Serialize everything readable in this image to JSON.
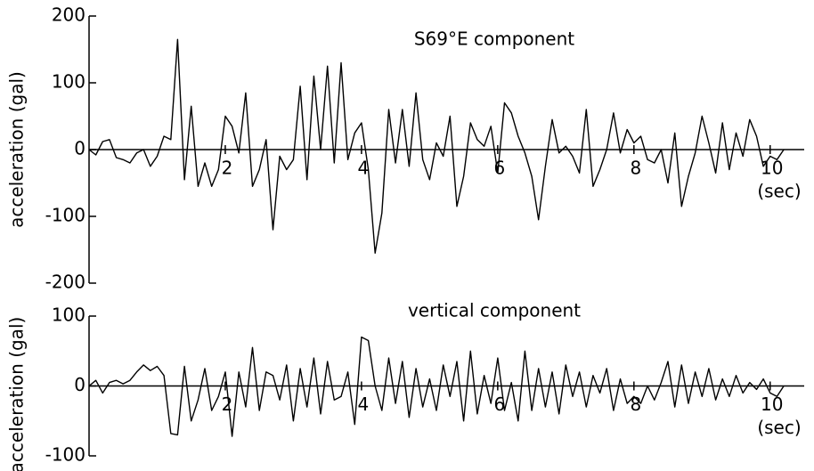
{
  "chart_data": [
    {
      "type": "line",
      "annotation": "S69°E component",
      "x_label": "(sec)",
      "y_label": "acceleration (gal)",
      "color": "#000000",
      "grid": false,
      "xlim": [
        0,
        10.5
      ],
      "xticks": [
        2,
        4,
        6,
        8,
        10
      ],
      "ylim": [
        -200,
        200
      ],
      "yticks": [
        200,
        100,
        0,
        -100,
        -200
      ],
      "x": [
        0,
        0.1,
        0.2,
        0.3,
        0.4,
        0.5,
        0.6,
        0.7,
        0.8,
        0.9,
        1,
        1.1,
        1.2,
        1.3,
        1.4,
        1.5,
        1.6,
        1.7,
        1.8,
        1.9,
        2,
        2.1,
        2.2,
        2.3,
        2.4,
        2.5,
        2.6,
        2.7,
        2.8,
        2.9,
        3,
        3.1,
        3.2,
        3.3,
        3.4,
        3.5,
        3.6,
        3.7,
        3.8,
        3.9,
        4,
        4.1,
        4.2,
        4.3,
        4.4,
        4.5,
        4.6,
        4.7,
        4.8,
        4.9,
        5,
        5.1,
        5.2,
        5.3,
        5.4,
        5.5,
        5.6,
        5.7,
        5.8,
        5.9,
        6,
        6.1,
        6.2,
        6.3,
        6.4,
        6.5,
        6.6,
        6.7,
        6.8,
        6.9,
        7,
        7.1,
        7.2,
        7.3,
        7.4,
        7.5,
        7.6,
        7.7,
        7.8,
        7.9,
        8,
        8.1,
        8.2,
        8.3,
        8.4,
        8.5,
        8.6,
        8.7,
        8.8,
        8.9,
        9,
        9.1,
        9.2,
        9.3,
        9.4,
        9.5,
        9.6,
        9.7,
        9.8,
        9.9,
        10,
        10.1,
        10.2
      ],
      "values": [
        0,
        -8,
        12,
        15,
        -12,
        -15,
        -20,
        -5,
        0,
        -25,
        -10,
        20,
        15,
        165,
        -45,
        65,
        -55,
        -20,
        -55,
        -30,
        50,
        35,
        -5,
        85,
        -55,
        -30,
        15,
        -120,
        -10,
        -30,
        -15,
        95,
        -45,
        110,
        0,
        125,
        -20,
        130,
        -15,
        25,
        40,
        -30,
        -155,
        -95,
        60,
        -20,
        60,
        -25,
        85,
        -15,
        -45,
        10,
        -10,
        50,
        -85,
        -40,
        40,
        15,
        5,
        35,
        -35,
        70,
        55,
        20,
        -5,
        -40,
        -105,
        -25,
        45,
        -5,
        5,
        -10,
        -35,
        60,
        -55,
        -30,
        0,
        55,
        -5,
        30,
        10,
        20,
        -15,
        -20,
        0,
        -50,
        25,
        -85,
        -40,
        -5,
        50,
        10,
        -35,
        40,
        -30,
        25,
        -10,
        45,
        20,
        -25,
        -10,
        -15,
        0
      ]
    },
    {
      "type": "line",
      "annotation": "vertical component",
      "x_label": "(sec)",
      "y_label": "acceleration (gal)",
      "color": "#000000",
      "grid": false,
      "xlim": [
        0,
        10.5
      ],
      "xticks": [
        2,
        4,
        6,
        8,
        10
      ],
      "ylim": [
        -100,
        100
      ],
      "yticks": [
        100,
        0,
        -100
      ],
      "x": [
        0,
        0.1,
        0.2,
        0.3,
        0.4,
        0.5,
        0.6,
        0.7,
        0.8,
        0.9,
        1,
        1.1,
        1.2,
        1.3,
        1.4,
        1.5,
        1.6,
        1.7,
        1.8,
        1.9,
        2,
        2.1,
        2.2,
        2.3,
        2.4,
        2.5,
        2.6,
        2.7,
        2.8,
        2.9,
        3,
        3.1,
        3.2,
        3.3,
        3.4,
        3.5,
        3.6,
        3.7,
        3.8,
        3.9,
        4,
        4.1,
        4.2,
        4.3,
        4.4,
        4.5,
        4.6,
        4.7,
        4.8,
        4.9,
        5,
        5.1,
        5.2,
        5.3,
        5.4,
        5.5,
        5.6,
        5.7,
        5.8,
        5.9,
        6,
        6.1,
        6.2,
        6.3,
        6.4,
        6.5,
        6.6,
        6.7,
        6.8,
        6.9,
        7,
        7.1,
        7.2,
        7.3,
        7.4,
        7.5,
        7.6,
        7.7,
        7.8,
        7.9,
        8,
        8.1,
        8.2,
        8.3,
        8.4,
        8.5,
        8.6,
        8.7,
        8.8,
        8.9,
        9,
        9.1,
        9.2,
        9.3,
        9.4,
        9.5,
        9.6,
        9.7,
        9.8,
        9.9,
        10,
        10.1,
        10.2
      ],
      "values": [
        0,
        8,
        -10,
        5,
        8,
        3,
        8,
        20,
        30,
        22,
        28,
        15,
        -68,
        -70,
        28,
        -50,
        -20,
        25,
        -35,
        -15,
        20,
        -72,
        20,
        -30,
        55,
        -35,
        20,
        15,
        -20,
        30,
        -50,
        25,
        -30,
        40,
        -40,
        35,
        -20,
        -15,
        20,
        -55,
        70,
        65,
        0,
        -35,
        40,
        -25,
        35,
        -45,
        25,
        -30,
        10,
        -35,
        30,
        -15,
        35,
        -50,
        50,
        -40,
        15,
        -25,
        40,
        -35,
        5,
        -50,
        50,
        -35,
        25,
        -30,
        20,
        -40,
        30,
        -15,
        20,
        -30,
        15,
        -10,
        25,
        -35,
        10,
        -25,
        -15,
        -25,
        0,
        -20,
        5,
        35,
        -30,
        30,
        -25,
        20,
        -15,
        25,
        -20,
        10,
        -15,
        15,
        -10,
        5,
        -5,
        10,
        -10,
        -15,
        0
      ]
    }
  ]
}
